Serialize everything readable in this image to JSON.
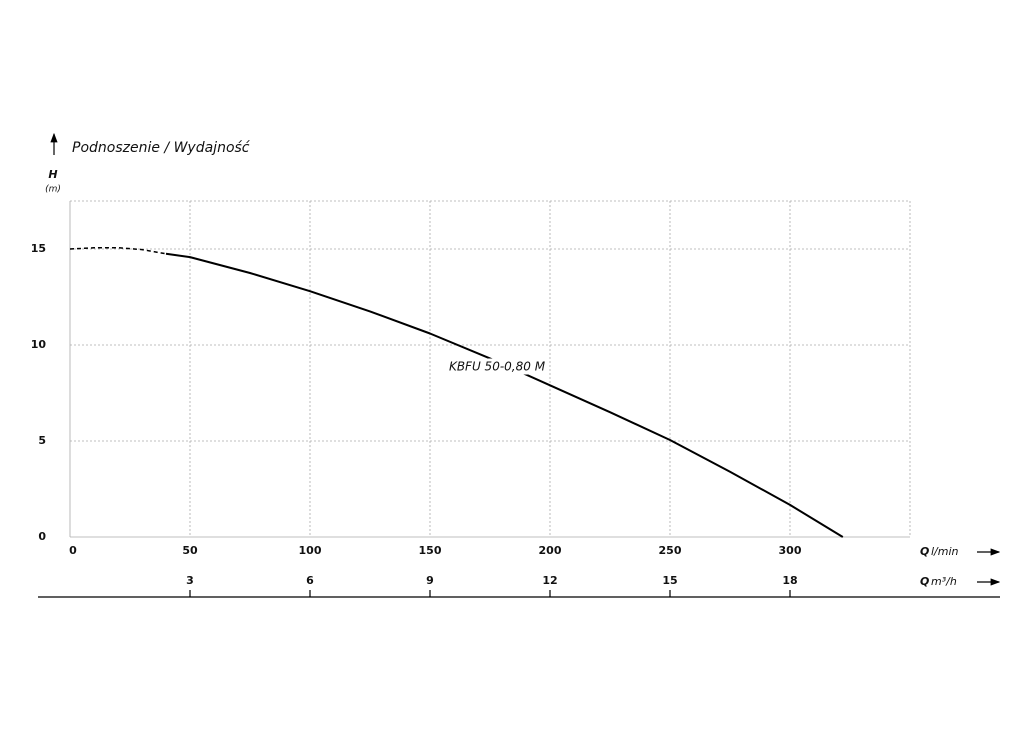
{
  "chart_data": {
    "type": "line",
    "title": "Podnoszenie / Wydajność",
    "y_label": {
      "symbol": "H",
      "unit": "(m)"
    },
    "x_label": {
      "symbol": "Q",
      "unit": "l/min"
    },
    "x2_label": {
      "symbol": "Q",
      "unit": "m³/h"
    },
    "annotation": "KBFU 50-0,80 M",
    "xlim": [
      0,
      350
    ],
    "xticks": [
      0,
      50,
      100,
      150,
      200,
      250,
      300
    ],
    "x2lim": [
      0,
      21
    ],
    "x2ticks": [
      3,
      6,
      9,
      12,
      15,
      18
    ],
    "ylim": [
      0,
      17.5
    ],
    "yticks": [
      0,
      5,
      10,
      15
    ],
    "grid": true,
    "color": "#000000",
    "curves": [
      {
        "style": "dashed",
        "x": [
          0,
          10,
          20,
          30,
          40
        ],
        "values": [
          15.0,
          15.06,
          15.07,
          14.97,
          14.75
        ]
      },
      {
        "style": "solid",
        "x": [
          40,
          50,
          75,
          100,
          125,
          150,
          175,
          200,
          225,
          250,
          275,
          300,
          322
        ],
        "values": [
          14.75,
          14.58,
          13.75,
          12.8,
          11.75,
          10.6,
          9.3,
          7.9,
          6.5,
          5.05,
          3.4,
          1.67,
          0
        ]
      }
    ]
  }
}
